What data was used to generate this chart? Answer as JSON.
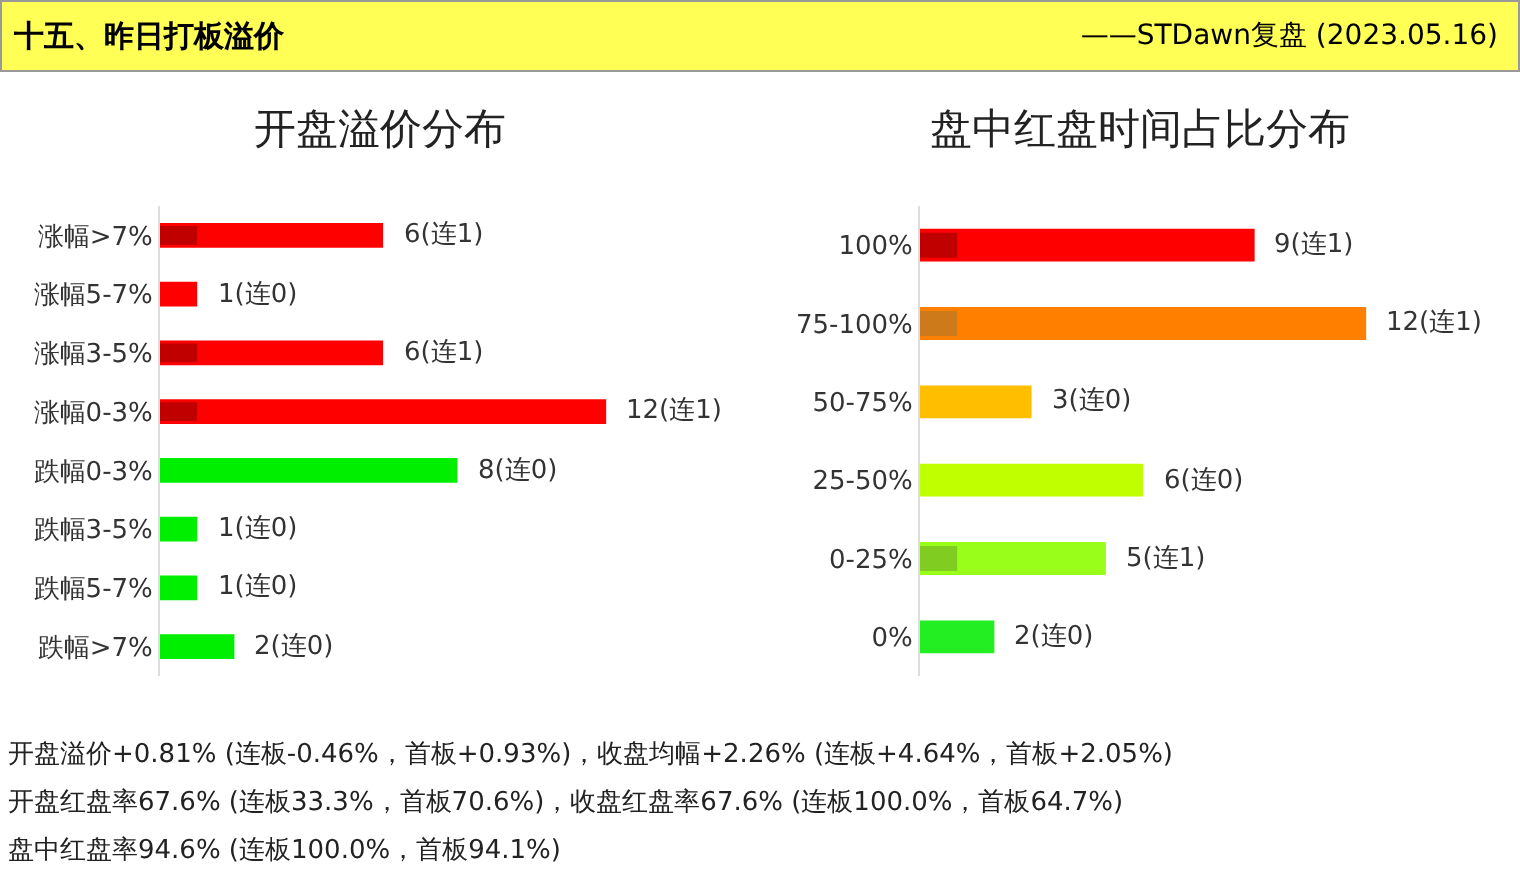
{
  "chart_data": [
    {
      "type": "other",
      "title": "十五、昨日打板溢价",
      "subtitle": "——STDawn复盘 (2023.05.16)",
      "annotations": [
        "开盘溢价+0.81% (连板-0.46%，首板+0.93%)，收盘均幅+2.26% (连板+4.64%，首板+2.05%)",
        "开盘红盘率67.6% (连板33.3%，首板70.6%)，收盘红盘率67.6% (连板100.0%，首板64.7%)",
        "盘中红盘率94.6% (连板100.0%，首板94.1%)"
      ]
    },
    {
      "type": "bar",
      "orientation": "horizontal",
      "title": "开盘溢价分布",
      "categories": [
        "涨幅>7%",
        "涨幅5-7%",
        "涨幅3-5%",
        "涨幅0-3%",
        "跌幅0-3%",
        "跌幅3-5%",
        "跌幅5-7%",
        "跌幅>7%"
      ],
      "series": [
        {
          "colors": [
            "#ff0000",
            "#ff0000",
            "#ff0000",
            "#ff0000",
            "#00ee00",
            "#00ee00",
            "#00ee00",
            "#00ee00"
          ],
          "values": [
            6,
            1,
            6,
            12,
            8,
            1,
            1,
            2
          ],
          "value_labels": [
            "6(连1)",
            "1(连0)",
            "6(连1)",
            "12(连1)",
            "8(连0)",
            "1(连0)",
            "1(连0)",
            "2(连0)"
          ]
        },
        {
          "colors": [
            "#c00000",
            "#c00000",
            "#c00000",
            "#c00000",
            "#00cc00",
            "#00cc00",
            "#00cc00",
            "#00cc00"
          ],
          "values": [
            1,
            0,
            1,
            1,
            0,
            0,
            0,
            0
          ]
        }
      ]
    },
    {
      "type": "bar",
      "orientation": "horizontal",
      "title": "盘中红盘时间占比分布",
      "categories": [
        "100%",
        "75-100%",
        "50-75%",
        "25-50%",
        "0-25%",
        "0%"
      ],
      "series": [
        {
          "colors": [
            "#ff0000",
            "#ff7f00",
            "#ffbf00",
            "#bfff00",
            "#99ff1a",
            "#22ee22"
          ],
          "values": [
            9,
            12,
            3,
            6,
            5,
            2
          ],
          "value_labels": [
            "9(连1)",
            "12(连1)",
            "3(连0)",
            "6(连0)",
            "5(连1)",
            "2(连0)"
          ]
        },
        {
          "colors": [
            "#c00000",
            "#cc7a1a",
            "#ffbf00",
            "#bfff00",
            "#80cc20",
            "#22ee22"
          ],
          "values": [
            1,
            1,
            0,
            0,
            1,
            0
          ]
        }
      ]
    }
  ]
}
